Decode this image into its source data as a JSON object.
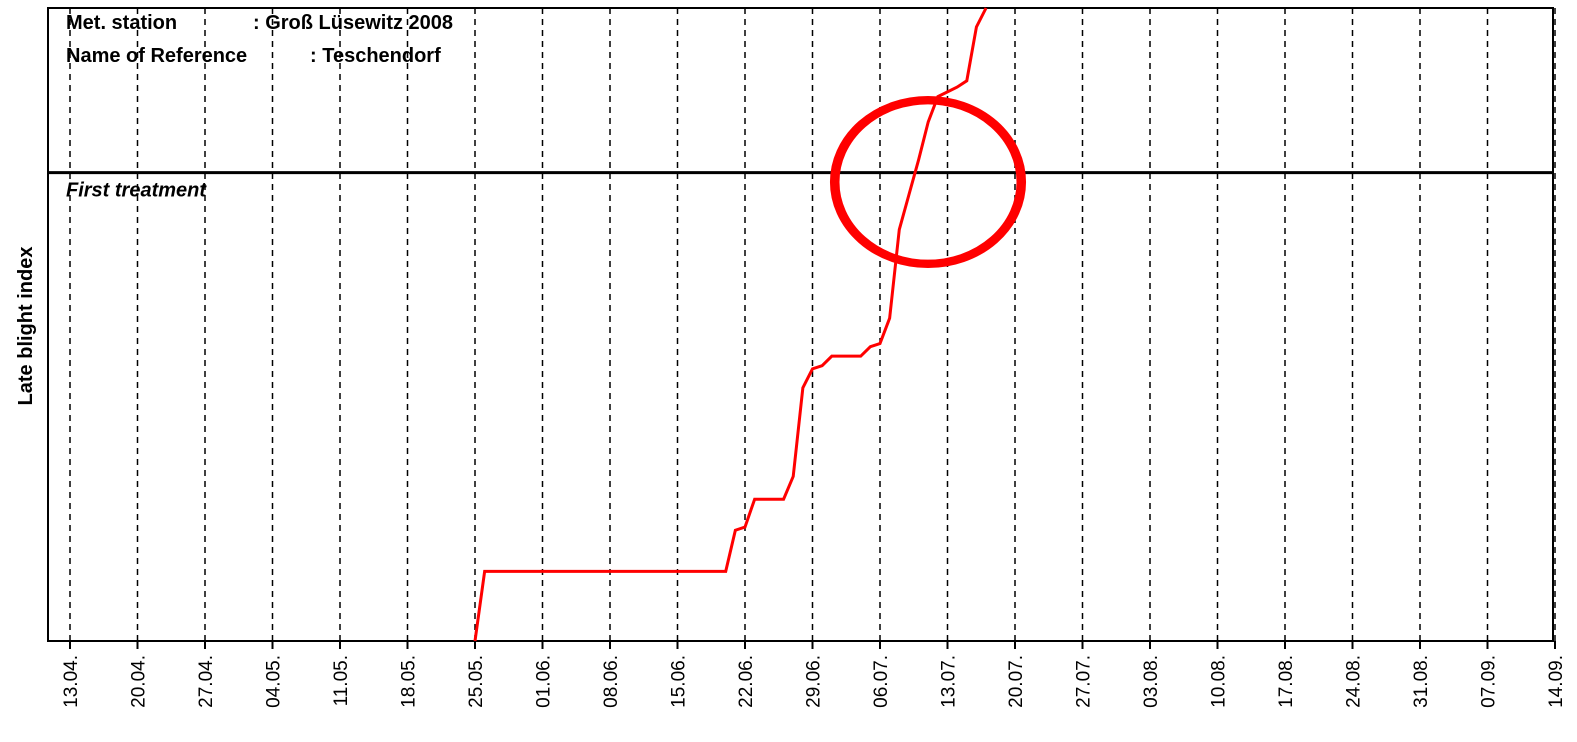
{
  "chart_data": {
    "type": "line",
    "info": [
      [
        "Met. station",
        ": Groß Lüsewitz 2008"
      ],
      [
        "Name of Reference",
        ": Teschendorf"
      ]
    ],
    "ylabel": "Late blight index",
    "categories": [
      "13.04.",
      "20.04.",
      "27.04.",
      "04.05.",
      "11.05.",
      "18.05.",
      "25.05.",
      "01.06.",
      "08.06.",
      "15.06.",
      "22.06.",
      "29.06.",
      "06.07.",
      "13.07.",
      "20.07.",
      "27.07.",
      "03.08.",
      "10.08.",
      "17.08.",
      "24.08.",
      "31.08.",
      "07.09.",
      "14.09."
    ],
    "ylim": [
      0,
      100
    ],
    "threshold": {
      "value": 74,
      "label": "First treatment"
    },
    "grid": true,
    "series": [
      {
        "color": "#ff0000",
        "x": [
          "25.05.",
          "26.05.",
          "20.06.",
          "21.06.",
          "22.06.",
          "23.06.",
          "26.06.",
          "27.06.",
          "28.06.",
          "29.06.",
          "30.06.",
          "01.07.",
          "04.07.",
          "05.07.",
          "06.07.",
          "07.07.",
          "08.07.",
          "09.07.",
          "10.07.",
          "11.07.",
          "12.07.",
          "14.07.",
          "15.07.",
          "16.07.",
          "17.07."
        ],
        "values": [
          0,
          11,
          11,
          17.5,
          18,
          22.4,
          22.4,
          26,
          40,
          43,
          43.5,
          45,
          45,
          46.5,
          47,
          51,
          65,
          70.5,
          76,
          82,
          86,
          87.5,
          88.5,
          97,
          100
        ]
      }
    ]
  }
}
